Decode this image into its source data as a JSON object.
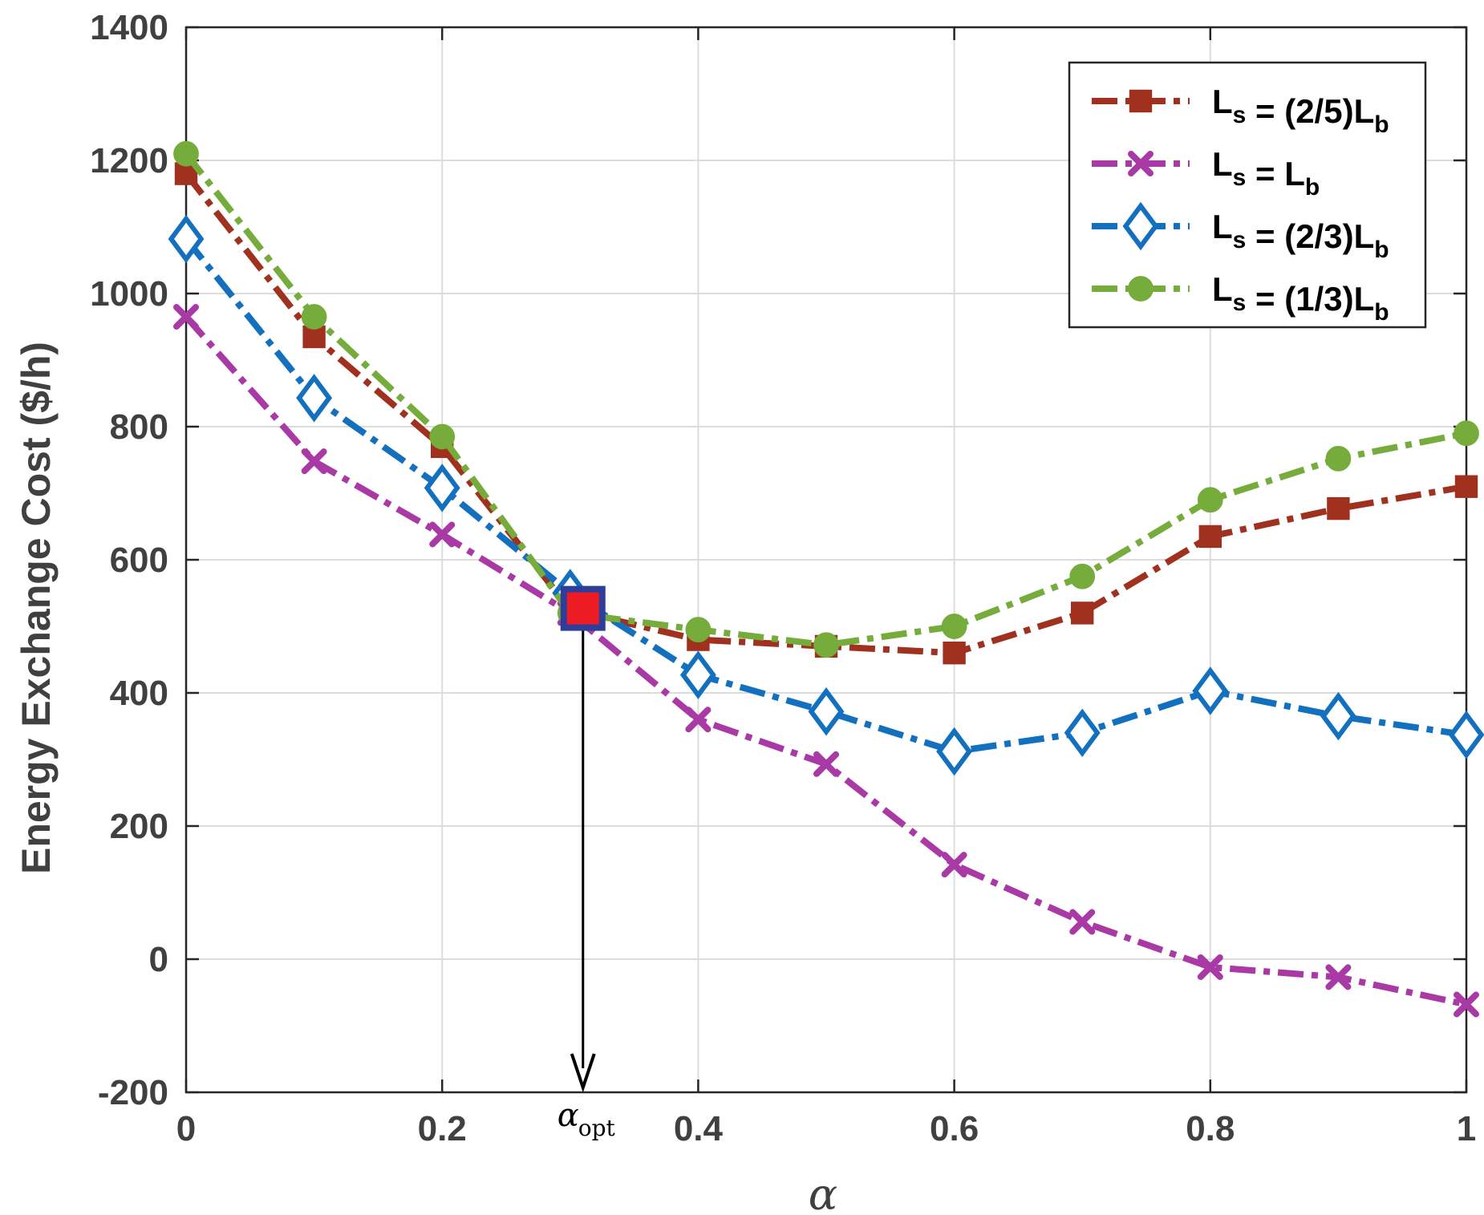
{
  "chart_data": {
    "type": "line",
    "title": "",
    "xlabel": "α",
    "ylabel": "Energy Exchange Cost ($/h)",
    "xlim": [
      0,
      1
    ],
    "ylim": [
      -200,
      1400
    ],
    "grid": true,
    "x_ticks": [
      0,
      0.2,
      0.4,
      0.6,
      0.8,
      1
    ],
    "x_tick_labels": [
      "0",
      "0.2",
      "0.4",
      "0.6",
      "0.8",
      "1"
    ],
    "y_ticks": [
      -200,
      0,
      200,
      400,
      600,
      800,
      1000,
      1200,
      1400
    ],
    "y_tick_labels": [
      "-200",
      "0",
      "200",
      "400",
      "600",
      "800",
      "1000",
      "1200",
      "1400"
    ],
    "x": [
      0,
      0.1,
      0.2,
      0.3,
      0.4,
      0.5,
      0.6,
      0.7,
      0.8,
      0.9,
      1.0
    ],
    "series": [
      {
        "name": "L_s = (2/5)L_b",
        "label_main": "L",
        "label_sub1": "s",
        "label_mid": " = (2/5)L",
        "label_sub2": "b",
        "color": "#A0311F",
        "marker": "square",
        "values": [
          1180,
          935,
          770,
          525,
          480,
          470,
          460,
          520,
          635,
          677,
          710
        ]
      },
      {
        "name": "L_s = L_b",
        "label_main": "L",
        "label_sub1": "s",
        "label_mid": " = L",
        "label_sub2": "b",
        "color": "#A93AA5",
        "marker": "x",
        "values": [
          965,
          748,
          638,
          520,
          360,
          293,
          142,
          56,
          -12,
          -27,
          -68
        ]
      },
      {
        "name": "L_s = (2/3)L_b",
        "label_main": "L",
        "label_sub1": "s",
        "label_mid": " = (2/3)L",
        "label_sub2": "b",
        "color": "#1270BF",
        "marker": "diamond",
        "values": [
          1082,
          843,
          708,
          550,
          427,
          372,
          312,
          340,
          403,
          365,
          337
        ]
      },
      {
        "name": "L_s = (1/3)L_b",
        "label_main": "L",
        "label_sub1": "s",
        "label_mid": " = (1/3)L",
        "label_sub2": "b",
        "color": "#76AC3B",
        "marker": "circle",
        "values": [
          1210,
          965,
          785,
          520,
          495,
          472,
          500,
          575,
          690,
          752,
          790
        ]
      }
    ],
    "annotation": {
      "text": "α",
      "subscript": "opt",
      "x": 0.31,
      "y": 527,
      "arrow_to_y": -200
    }
  }
}
